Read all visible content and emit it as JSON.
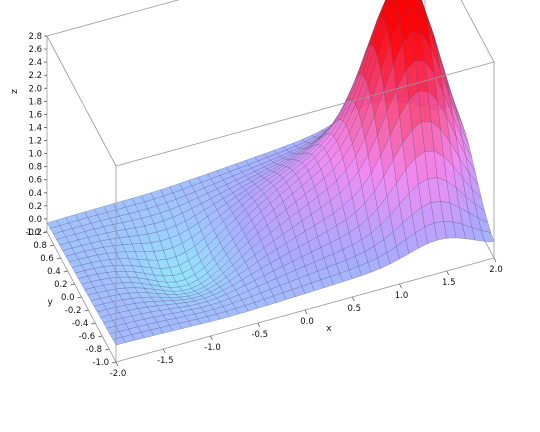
{
  "chart_data": {
    "type": "surface",
    "title": "",
    "xlabel": "x",
    "ylabel": "y",
    "zlabel": "z",
    "xlim": [
      -2.0,
      2.0
    ],
    "ylim": [
      -1.0,
      1.0
    ],
    "zlim": [
      -0.2,
      2.8
    ],
    "x_ticks": [
      "-2.0",
      "-1.5",
      "-1.0",
      "-0.5",
      "0.0",
      "0.5",
      "1.0",
      "1.5",
      "2.0"
    ],
    "y_ticks": [
      "-1.0",
      "-0.8",
      "-0.6",
      "-0.4",
      "-0.2",
      "0.0",
      "0.2",
      "0.4",
      "0.6",
      "0.8",
      "1.0"
    ],
    "z_ticks": [
      "-0.2",
      "0.0",
      "0.2",
      "0.4",
      "0.6",
      "0.8",
      "1.0",
      "1.2",
      "1.4",
      "1.6",
      "1.8",
      "2.0",
      "2.2",
      "2.4",
      "2.6",
      "2.8"
    ],
    "grid": false,
    "colormap": [
      "#88e8ff",
      "#a3a3ff",
      "#f080f0",
      "#ff0000"
    ],
    "mesh_color": "#505070",
    "surface_samples": {
      "x": [
        -2.0,
        -1.0,
        0.0,
        1.0,
        1.5,
        2.0
      ],
      "y0_values": [
        0.0,
        -0.35,
        0.35,
        1.9,
        2.7,
        0.3
      ]
    }
  }
}
